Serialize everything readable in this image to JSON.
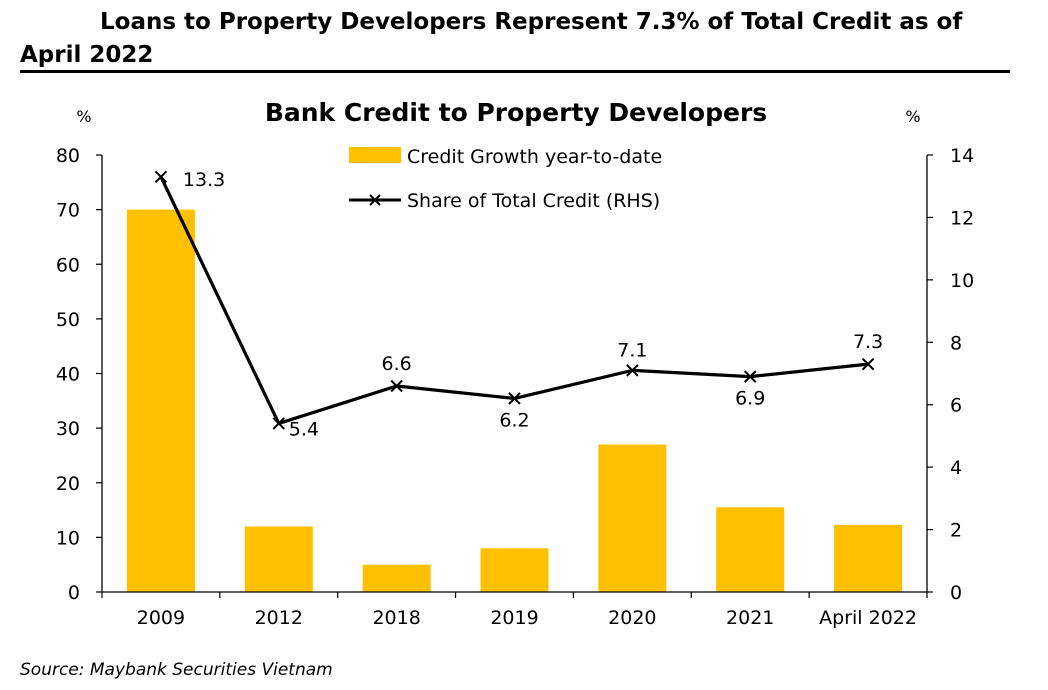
{
  "headline": "Loans to Property Developers Represent 7.3% of Total Credit as of April 2022",
  "source": "Source: Maybank Securities Vietnam",
  "colors": {
    "bar": "#FFC000",
    "line": "#000000",
    "axis": "#000000"
  },
  "chart_data": {
    "type": "bar+line",
    "title": "Bank Credit to Property Developers",
    "left_unit": "%",
    "right_unit": "%",
    "categories": [
      "2009",
      "2012",
      "2018",
      "2019",
      "2020",
      "2021",
      "April 2022"
    ],
    "series": [
      {
        "name": "Credit Growth year-to-date",
        "type": "bar",
        "axis": "left",
        "values": [
          70,
          12,
          5,
          8,
          27,
          15.5,
          12.3
        ]
      },
      {
        "name": "Share of Total Credit (RHS)",
        "type": "line",
        "axis": "right",
        "values": [
          13.3,
          5.4,
          6.6,
          6.2,
          7.1,
          6.9,
          7.3
        ],
        "labels": [
          "13.3",
          "5.4",
          "6.6",
          "6.2",
          "7.1",
          "6.9",
          "7.3"
        ]
      }
    ],
    "left_axis": {
      "min": 0,
      "max": 80,
      "ticks": [
        0,
        10,
        20,
        30,
        40,
        50,
        60,
        70,
        80
      ]
    },
    "right_axis": {
      "min": 0,
      "max": 14,
      "ticks": [
        0,
        2,
        4,
        6,
        8,
        10,
        12,
        14
      ]
    },
    "legend": [
      "Credit Growth year-to-date",
      "Share of Total Credit (RHS)"
    ]
  }
}
